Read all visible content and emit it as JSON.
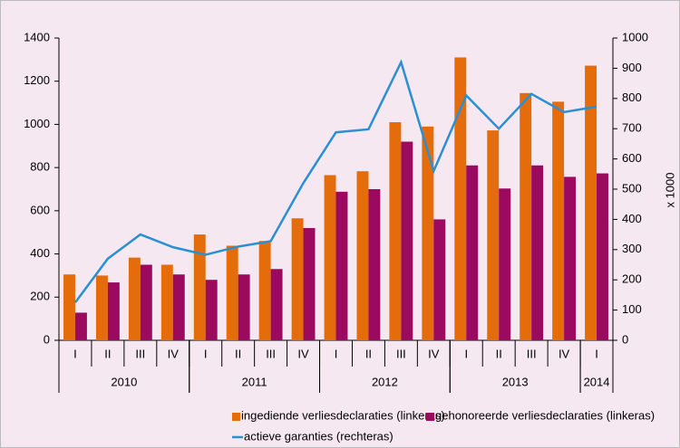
{
  "chart_data": {
    "type": "bar_line",
    "categories": [
      "I",
      "II",
      "III",
      "IV",
      "I",
      "II",
      "III",
      "IV",
      "I",
      "II",
      "III",
      "IV",
      "I",
      "II",
      "III",
      "IV",
      "I"
    ],
    "category_groups": [
      {
        "label": "2010",
        "size": 4
      },
      {
        "label": "2011",
        "size": 4
      },
      {
        "label": "2012",
        "size": 4
      },
      {
        "label": "2013",
        "size": 4
      },
      {
        "label": "2014",
        "size": 1
      }
    ],
    "series": [
      {
        "name": "ingediende verliesdeclaraties (linkeras)",
        "type": "bar",
        "color": "#e46c0a",
        "values": [
          305,
          300,
          383,
          350,
          490,
          438,
          460,
          565,
          765,
          783,
          1010,
          990,
          1310,
          972,
          1145,
          1105,
          1272
        ]
      },
      {
        "name": "gehonoreerde verliesdeclaraties (linkeras)",
        "type": "bar",
        "color": "#9b0a5e",
        "values": [
          128,
          268,
          350,
          305,
          280,
          305,
          330,
          520,
          688,
          700,
          920,
          560,
          810,
          703,
          810,
          757,
          773
        ]
      },
      {
        "name": "actieve garanties (rechteras)",
        "type": "line",
        "axis": "y2",
        "color": "#2a8fd3",
        "values": [
          125,
          270,
          350,
          308,
          283,
          310,
          328,
          520,
          688,
          698,
          920,
          560,
          810,
          700,
          815,
          755,
          773
        ]
      }
    ],
    "ylim": [
      0,
      1400
    ],
    "yticks": [
      0,
      200,
      400,
      600,
      800,
      1000,
      1200,
      1400
    ],
    "y2lim": [
      0,
      1000
    ],
    "y2ticks": [
      0,
      100,
      200,
      300,
      400,
      500,
      600,
      700,
      800,
      900,
      1000
    ],
    "y2label": "x 1000",
    "grid": false
  }
}
